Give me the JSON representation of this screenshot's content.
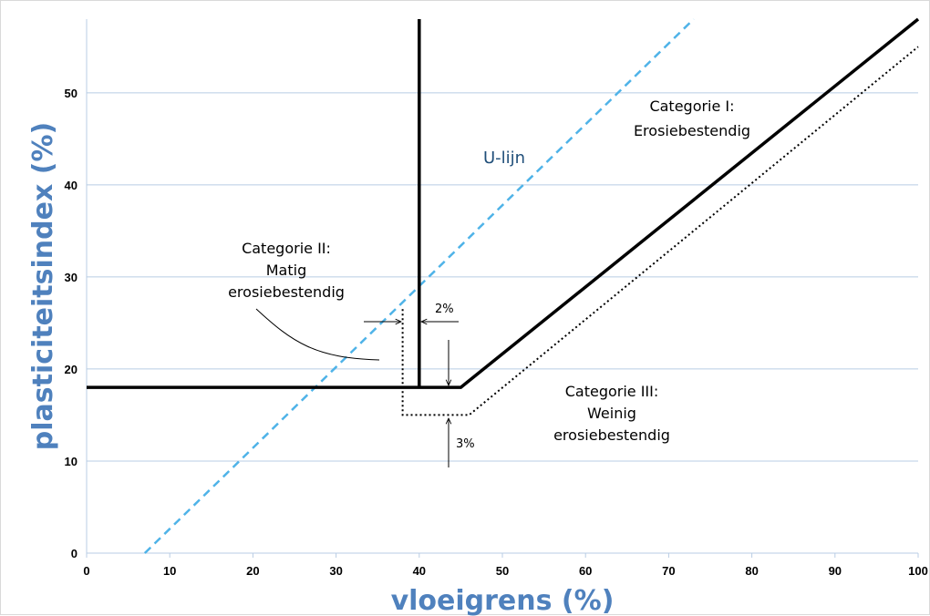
{
  "chart_data": {
    "type": "line",
    "xlabel": "vloeigrens (%)",
    "ylabel": "plasticiteitsindex (%)",
    "xlim": [
      0,
      100
    ],
    "ylim": [
      0,
      58
    ],
    "x_ticks": [
      0,
      10,
      20,
      30,
      40,
      50,
      60,
      70,
      80,
      90,
      100
    ],
    "y_ticks": [
      0,
      10,
      20,
      30,
      40,
      50
    ],
    "grid": "horizontal",
    "colors": {
      "grid": "#b8cce4",
      "u_line": "#4fb3e8",
      "boundary": "#000000",
      "axis_title": "#4f81bd",
      "u_label": "#1f4e79"
    },
    "series": [
      {
        "name": "U-lijn",
        "style": "dashed",
        "points": [
          [
            7,
            0
          ],
          [
            73,
            58
          ]
        ]
      },
      {
        "style": "solid",
        "points": [
          [
            0,
            18
          ],
          [
            45,
            18
          ],
          [
            100,
            58
          ]
        ]
      },
      {
        "style": "solid",
        "points": [
          [
            40,
            18
          ],
          [
            40,
            58
          ]
        ]
      },
      {
        "style": "dotted",
        "points": [
          [
            38,
            26.5
          ],
          [
            38,
            15
          ],
          [
            46,
            15
          ],
          [
            100,
            55
          ]
        ]
      }
    ],
    "annotations": {
      "u_lijn": "U-lijn",
      "cat1_line1": "Categorie I:",
      "cat1_line2": "Erosiebestendig",
      "cat2_line1": "Categorie II:",
      "cat2_line2": "Matig",
      "cat2_line3": "erosiebestendig",
      "cat3_line1": "Categorie III:",
      "cat3_line2": "Weinig",
      "cat3_line3": "erosiebestendig",
      "offset_x": "2%",
      "offset_y": "3%"
    }
  }
}
